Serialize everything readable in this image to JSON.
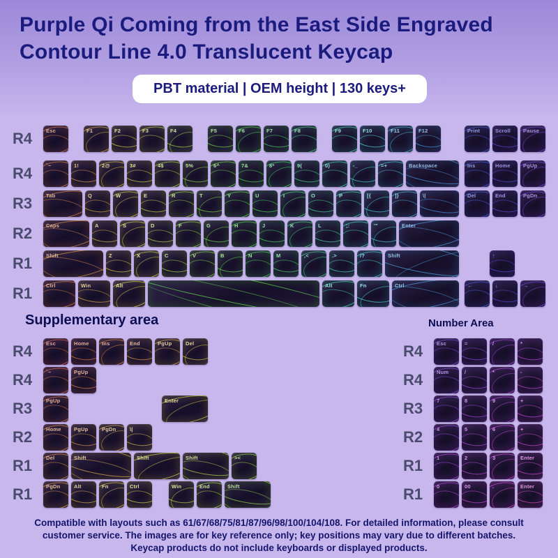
{
  "header": {
    "title_line1": "Purple Qi Coming from the East Side Engraved",
    "title_line2": "Contour Line 4.0 Translucent Keycap",
    "badge": "PBT material | OEM height | 130 keys+"
  },
  "sections": {
    "supplementary_title": "Supplementary area",
    "number_title": "Number Area"
  },
  "colors": {
    "background": "#c7b7ed",
    "header_top": "#9c88d8",
    "header_mid": "#b2a0e3",
    "title": "#1b1b7e",
    "badge_bg": "#ffffff",
    "keycap_base": "#1a1130",
    "row_label": "#4b4b6e"
  },
  "main_keyboard": {
    "rows": [
      {
        "label": "R4",
        "keys": [
          {
            "t": "Esc"
          },
          {
            "sp": 0.45
          },
          {
            "t": "F1"
          },
          {
            "t": "F2"
          },
          {
            "t": "F3"
          },
          {
            "t": "F4"
          },
          {
            "sp": 0.45
          },
          {
            "t": "F5"
          },
          {
            "t": "F6"
          },
          {
            "t": "F7"
          },
          {
            "t": "F8"
          },
          {
            "sp": 0.45
          },
          {
            "t": "F9"
          },
          {
            "t": "F10"
          },
          {
            "t": "F11"
          },
          {
            "t": "F12"
          }
        ],
        "nav": [
          {
            "t": "Print"
          },
          {
            "t": "Scroll"
          },
          {
            "t": "Pause"
          }
        ]
      },
      {
        "label": "R4",
        "keys": [
          {
            "t": "`~"
          },
          {
            "t": "1!"
          },
          {
            "t": "2@"
          },
          {
            "t": "3#"
          },
          {
            "t": "4$"
          },
          {
            "t": "5%"
          },
          {
            "t": "6^"
          },
          {
            "t": "7&"
          },
          {
            "t": "8*"
          },
          {
            "t": "9("
          },
          {
            "t": "0)"
          },
          {
            "t": "-_"
          },
          {
            "t": "=+"
          },
          {
            "t": "Backspace",
            "w": 2
          }
        ],
        "nav": [
          {
            "t": "Ins"
          },
          {
            "t": "Home"
          },
          {
            "t": "PgUp"
          }
        ]
      },
      {
        "label": "R3",
        "keys": [
          {
            "t": "Tab",
            "w": 1.5
          },
          {
            "t": "Q"
          },
          {
            "t": "W"
          },
          {
            "t": "E"
          },
          {
            "t": "R"
          },
          {
            "t": "T"
          },
          {
            "t": "Y"
          },
          {
            "t": "U"
          },
          {
            "t": "I"
          },
          {
            "t": "O"
          },
          {
            "t": "P"
          },
          {
            "t": "[{"
          },
          {
            "t": "]}"
          },
          {
            "t": "\\|",
            "w": 1.5
          }
        ],
        "nav": [
          {
            "t": "Del"
          },
          {
            "t": "End"
          },
          {
            "t": "PgDn"
          }
        ]
      },
      {
        "label": "R2",
        "keys": [
          {
            "t": "Caps",
            "w": 1.75
          },
          {
            "t": "A"
          },
          {
            "t": "S"
          },
          {
            "t": "D"
          },
          {
            "t": "F"
          },
          {
            "t": "G"
          },
          {
            "t": "H"
          },
          {
            "t": "J"
          },
          {
            "t": "K"
          },
          {
            "t": "L"
          },
          {
            "t": ";:"
          },
          {
            "t": "'\""
          },
          {
            "t": "Enter",
            "w": 2.25
          }
        ],
        "nav": []
      },
      {
        "label": "R1",
        "keys": [
          {
            "t": "Shift",
            "w": 2.25
          },
          {
            "t": "Z"
          },
          {
            "t": "X"
          },
          {
            "t": "C"
          },
          {
            "t": "V"
          },
          {
            "t": "B"
          },
          {
            "t": "N"
          },
          {
            "t": "M"
          },
          {
            "t": ",<"
          },
          {
            "t": ".>"
          },
          {
            "t": "/?"
          },
          {
            "t": "Shift",
            "w": 2.75
          }
        ],
        "nav": [
          {
            "sp": 1
          },
          {
            "t": "↑"
          },
          {
            "sp": 1
          }
        ]
      },
      {
        "label": "R1",
        "keys": [
          {
            "t": "Ctrl",
            "w": 1.25
          },
          {
            "t": "Win",
            "w": 1.25
          },
          {
            "t": "Alt",
            "w": 1.25
          },
          {
            "t": "",
            "w": 6.25
          },
          {
            "t": "Alt",
            "w": 1.25
          },
          {
            "t": "Fn",
            "w": 1.25
          },
          {
            "t": "Ctrl",
            "w": 2.5
          }
        ],
        "nav": [
          {
            "t": "←"
          },
          {
            "t": "↓"
          },
          {
            "t": "→"
          }
        ]
      }
    ]
  },
  "supplementary": {
    "rows": [
      {
        "label": "R4",
        "keys": [
          {
            "t": "Esc"
          },
          {
            "t": "Home"
          },
          {
            "t": "Ins"
          },
          {
            "t": "End"
          },
          {
            "t": "PgUp"
          },
          {
            "t": "Del"
          }
        ]
      },
      {
        "label": "R4",
        "keys": [
          {
            "t": "`~"
          },
          {
            "t": "PgUp"
          }
        ]
      },
      {
        "label": "R3",
        "keys": [
          {
            "t": "PgUp"
          },
          {
            "sp": 3.25
          },
          {
            "t": "Enter",
            "w": 1.75
          }
        ]
      },
      {
        "label": "R2",
        "keys": [
          {
            "t": "Home"
          },
          {
            "t": "PgUp"
          },
          {
            "t": "PgDn"
          },
          {
            "t": "\\|"
          }
        ]
      },
      {
        "label": "R1",
        "keys": [
          {
            "t": "Del"
          },
          {
            "t": "Shift",
            "w": 2.25
          },
          {
            "t": "Shift",
            "w": 1.75
          },
          {
            "t": "Shift",
            "w": 1.75
          },
          {
            "t": "><"
          }
        ]
      },
      {
        "label": "R1",
        "keys": [
          {
            "t": "PgDn"
          },
          {
            "t": "Alt"
          },
          {
            "t": "Fn"
          },
          {
            "t": "Ctrl"
          },
          {
            "sp": 0.5
          },
          {
            "t": "Win"
          },
          {
            "t": "End"
          },
          {
            "t": "Shift",
            "w": 1.75
          }
        ]
      }
    ]
  },
  "number_area": {
    "rows": [
      {
        "label": "R4",
        "keys": [
          {
            "t": "Esc"
          },
          {
            "t": "="
          },
          {
            "t": "/"
          },
          {
            "t": "*"
          }
        ]
      },
      {
        "label": "R4",
        "keys": [
          {
            "t": "Num"
          },
          {
            "t": "/"
          },
          {
            "t": "*"
          },
          {
            "t": "-"
          }
        ]
      },
      {
        "label": "R3",
        "keys": [
          {
            "t": "7"
          },
          {
            "t": "8"
          },
          {
            "t": "9"
          },
          {
            "t": "+"
          }
        ]
      },
      {
        "label": "R2",
        "keys": [
          {
            "t": "4"
          },
          {
            "t": "5"
          },
          {
            "t": "6"
          },
          {
            "t": "+"
          }
        ]
      },
      {
        "label": "R1",
        "keys": [
          {
            "t": "1"
          },
          {
            "t": "2"
          },
          {
            "t": "3"
          },
          {
            "t": "Enter"
          }
        ]
      },
      {
        "label": "R1",
        "keys": [
          {
            "t": "0"
          },
          {
            "t": "00"
          },
          {
            "t": "."
          },
          {
            "t": "Enter"
          }
        ]
      }
    ]
  },
  "footer": {
    "text": "Compatible with layouts such as 61/67/68/75/81/87/96/98/100/104/108. For detailed information, please consult customer service. The images are for key reference only; key positions may vary due to different batches. Keycap products do not include keyboards or displayed products."
  }
}
